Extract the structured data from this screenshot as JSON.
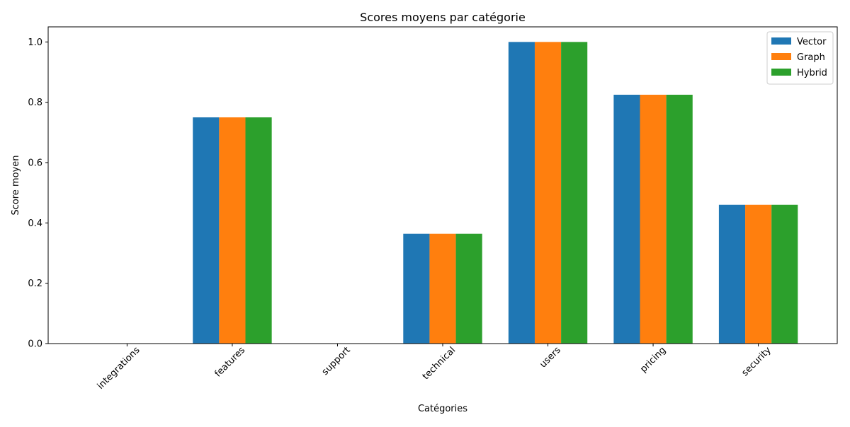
{
  "chart_data": {
    "type": "bar",
    "title": "Scores moyens par catégorie",
    "xlabel": "Catégories",
    "ylabel": "Score moyen",
    "categories": [
      "integrations",
      "features",
      "support",
      "technical",
      "users",
      "pricing",
      "security"
    ],
    "series": [
      {
        "name": "Vector",
        "color": "#1f77b4",
        "values": [
          0.0,
          0.75,
          0.0,
          0.364,
          1.0,
          0.825,
          0.46
        ]
      },
      {
        "name": "Graph",
        "color": "#ff7f0e",
        "values": [
          0.0,
          0.75,
          0.0,
          0.364,
          1.0,
          0.825,
          0.46
        ]
      },
      {
        "name": "Hybrid",
        "color": "#2ca02c",
        "values": [
          0.0,
          0.75,
          0.0,
          0.364,
          1.0,
          0.825,
          0.46
        ]
      }
    ],
    "ylim": [
      0,
      1.05
    ],
    "yticks": [
      "0.0",
      "0.2",
      "0.4",
      "0.6",
      "0.8",
      "1.0"
    ],
    "grid": false,
    "legend_position": "top-right"
  }
}
